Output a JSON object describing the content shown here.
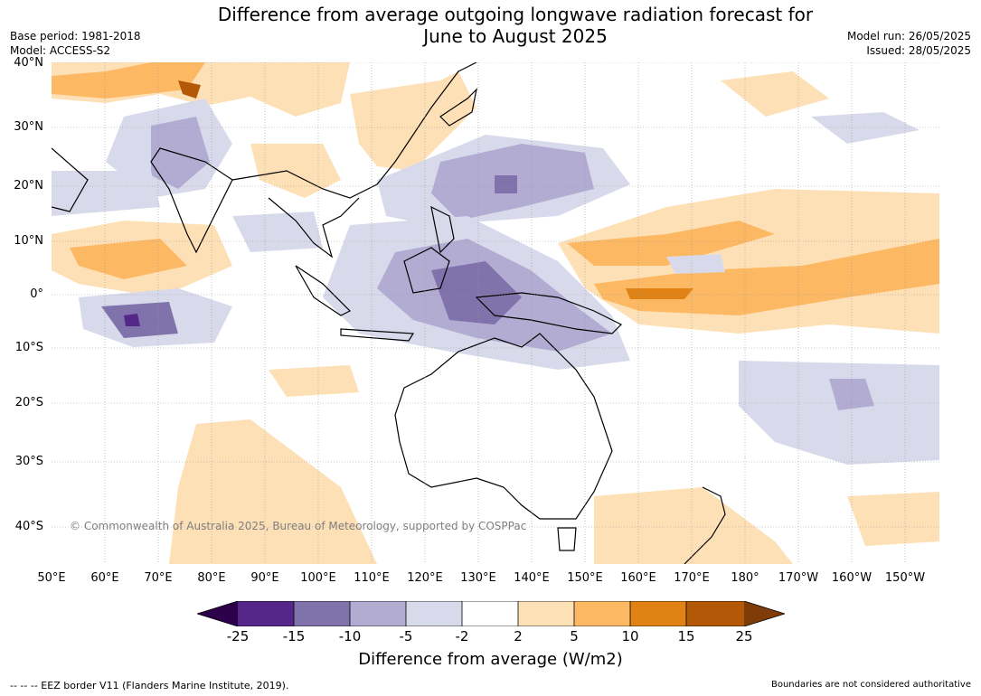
{
  "header": {
    "title_line1": "Difference from average outgoing longwave radiation forecast for",
    "title_line2": "June to August 2025",
    "base_period": "Base period: 1981-2018",
    "model": "Model: ACCESS-S2",
    "model_run": "Model run: 26/05/2025",
    "issued": "Issued: 28/05/2025"
  },
  "map": {
    "lat_labels": [
      "40°N",
      "30°N",
      "20°N",
      "10°N",
      "0°",
      "10°S",
      "20°S",
      "30°S",
      "40°S"
    ],
    "lon_labels": [
      "50°E",
      "60°E",
      "70°E",
      "80°E",
      "90°E",
      "100°E",
      "110°E",
      "120°E",
      "130°E",
      "140°E",
      "150°E",
      "160°E",
      "170°E",
      "180°",
      "170°W",
      "160°W",
      "150°W"
    ],
    "copyright": "© Commonwealth of Australia 2025, Bureau of Meteorology, supported by COSPPac",
    "colors": {
      "neg25": "#2d004b",
      "neg15": "#542788",
      "neg10": "#8073ac",
      "neg5": "#b2abd2",
      "neg2": "#d8daeb",
      "zero": "#ffffff",
      "pos2": "#fee0b6",
      "pos5": "#fdb863",
      "pos10": "#e08214",
      "pos15": "#b35806",
      "pos25": "#7f3b08"
    }
  },
  "colorbar": {
    "ticks": [
      "-25",
      "-15",
      "-10",
      "-5",
      "-2",
      "2",
      "5",
      "10",
      "15",
      "25"
    ],
    "title": "Difference from average (W/m2)"
  },
  "footer": {
    "eez_note": "--  --  -- EEZ border V11 (Flanders Marine Institute, 2019).",
    "disclaimer": "Boundaries are not considered authoritative"
  }
}
